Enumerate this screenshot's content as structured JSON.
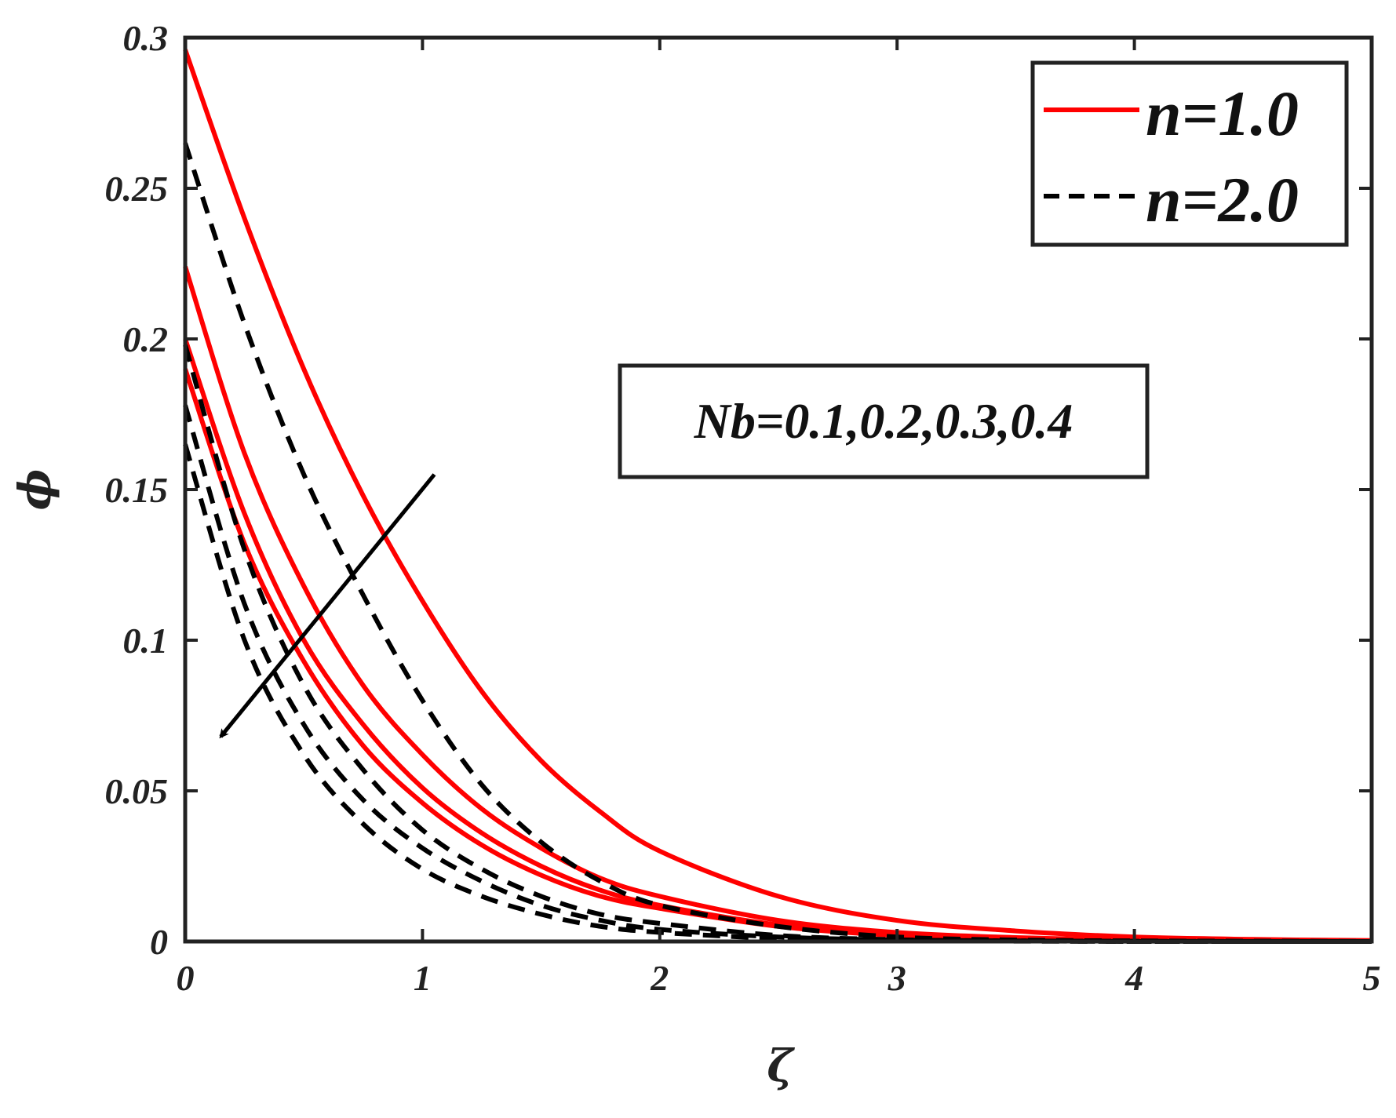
{
  "chart_data": {
    "type": "line",
    "xlabel": "ζ",
    "ylabel": "ϕ",
    "xlim": [
      0,
      5
    ],
    "ylim": [
      0,
      0.3
    ],
    "xticks": [
      0,
      1,
      2,
      3,
      4,
      5
    ],
    "yticks": [
      0,
      0.05,
      0.1,
      0.15,
      0.2,
      0.25,
      0.3
    ],
    "xtick_labels": [
      "0",
      "1",
      "2",
      "3",
      "4",
      "5"
    ],
    "ytick_labels": [
      "0",
      "0.05",
      "0.1",
      "0.15",
      "0.2",
      "0.25",
      "0.3"
    ],
    "grid": false,
    "legend_position": "top-right",
    "annotation": "Nb=0.1,0.2,0.3,0.4",
    "colors": {
      "n1": "#ff0000",
      "n2": "#000000",
      "frame": "#222222"
    },
    "legend": [
      {
        "label": "n=1.0",
        "style": "solid",
        "color": "#ff0000"
      },
      {
        "label": "n=2.0",
        "style": "dashed",
        "color": "#000000"
      }
    ],
    "x": [
      0,
      0.25,
      0.5,
      0.75,
      1.0,
      1.25,
      1.5,
      1.75,
      2.0,
      2.5,
      3.0,
      3.5,
      4.0,
      4.5,
      5.0
    ],
    "series": [
      {
        "group": "n=1.0",
        "values": [
          0.296,
          0.24,
          0.19,
          0.148,
          0.113,
          0.083,
          0.06,
          0.043,
          0.03,
          0.015,
          0.007,
          0.0035,
          0.0015,
          0.0007,
          0.0003
        ]
      },
      {
        "group": "n=1.0",
        "values": [
          0.224,
          0.162,
          0.118,
          0.085,
          0.062,
          0.044,
          0.031,
          0.021,
          0.015,
          0.007,
          0.003,
          0.0013,
          0.0006,
          0.0003,
          0.0001
        ]
      },
      {
        "group": "n=1.0",
        "values": [
          0.2,
          0.142,
          0.1,
          0.072,
          0.051,
          0.036,
          0.025,
          0.017,
          0.012,
          0.0055,
          0.0024,
          0.001,
          0.0004,
          0.0002,
          0.0001
        ]
      },
      {
        "group": "n=1.0",
        "values": [
          0.19,
          0.132,
          0.093,
          0.065,
          0.046,
          0.032,
          0.022,
          0.015,
          0.011,
          0.005,
          0.002,
          0.0009,
          0.0004,
          0.0002,
          0.0001
        ]
      },
      {
        "group": "n=2.0",
        "values": [
          0.265,
          0.205,
          0.155,
          0.115,
          0.08,
          0.052,
          0.033,
          0.02,
          0.012,
          0.005,
          0.0015,
          0.0005,
          0.0002,
          0.0001,
          0
        ]
      },
      {
        "group": "n=2.0",
        "values": [
          0.198,
          0.13,
          0.085,
          0.057,
          0.037,
          0.024,
          0.015,
          0.009,
          0.006,
          0.002,
          0.0006,
          0.0002,
          0.0001,
          0,
          0
        ]
      },
      {
        "group": "n=2.0",
        "values": [
          0.178,
          0.112,
          0.072,
          0.047,
          0.031,
          0.02,
          0.012,
          0.007,
          0.004,
          0.0015,
          0.0005,
          0.0002,
          0,
          0,
          0
        ]
      },
      {
        "group": "n=2.0",
        "values": [
          0.165,
          0.1,
          0.062,
          0.039,
          0.024,
          0.015,
          0.009,
          0.005,
          0.003,
          0.001,
          0.0003,
          0.0001,
          0,
          0,
          0
        ]
      }
    ],
    "arrow": {
      "from": [
        1.05,
        0.155
      ],
      "to": [
        0.15,
        0.068
      ]
    }
  }
}
